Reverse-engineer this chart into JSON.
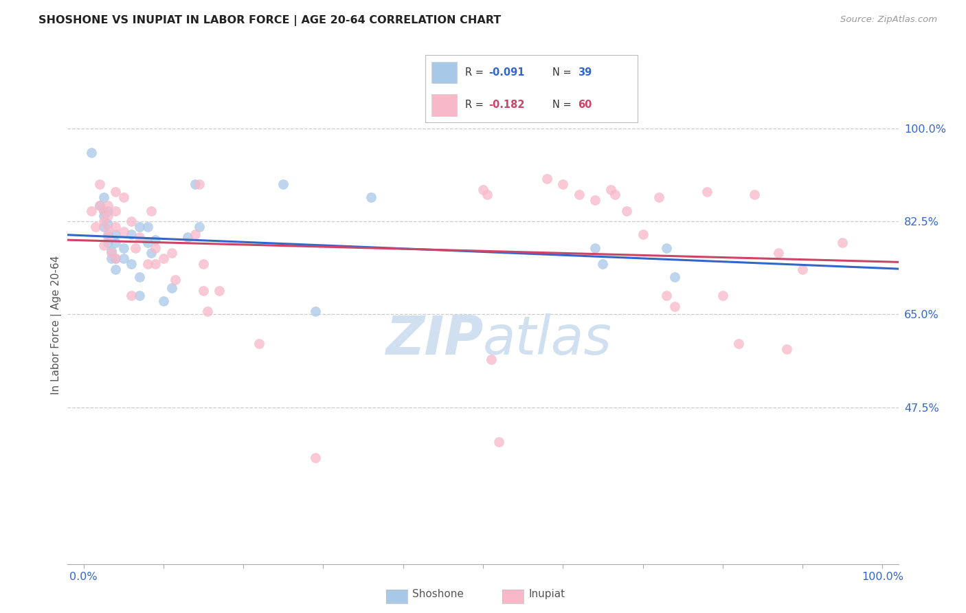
{
  "title": "SHOSHONE VS INUPIAT IN LABOR FORCE | AGE 20-64 CORRELATION CHART",
  "source": "Source: ZipAtlas.com",
  "ylabel": "In Labor Force | Age 20-64",
  "ytick_labels": [
    "100.0%",
    "82.5%",
    "65.0%",
    "47.5%"
  ],
  "ytick_values": [
    1.0,
    0.825,
    0.65,
    0.475
  ],
  "ymin": 0.18,
  "ymax": 1.08,
  "xmin": -0.02,
  "xmax": 1.02,
  "legend_r_shoshone": "-0.091",
  "legend_n_shoshone": "39",
  "legend_r_inupiat": "-0.182",
  "legend_n_inupiat": "60",
  "shoshone_color": "#a8c8e8",
  "inupiat_color": "#f8b8c8",
  "shoshone_line_color": "#3366cc",
  "inupiat_line_color": "#cc4466",
  "title_color": "#222222",
  "axis_label_color": "#3366cc",
  "watermark_color": "#d0e0f0",
  "shoshone_points": [
    [
      0.01,
      0.955
    ],
    [
      0.02,
      0.855
    ],
    [
      0.025,
      0.87
    ],
    [
      0.025,
      0.845
    ],
    [
      0.025,
      0.835
    ],
    [
      0.025,
      0.815
    ],
    [
      0.03,
      0.845
    ],
    [
      0.03,
      0.82
    ],
    [
      0.03,
      0.8
    ],
    [
      0.03,
      0.785
    ],
    [
      0.035,
      0.77
    ],
    [
      0.035,
      0.755
    ],
    [
      0.04,
      0.8
    ],
    [
      0.04,
      0.785
    ],
    [
      0.04,
      0.755
    ],
    [
      0.04,
      0.735
    ],
    [
      0.05,
      0.775
    ],
    [
      0.05,
      0.755
    ],
    [
      0.06,
      0.8
    ],
    [
      0.06,
      0.745
    ],
    [
      0.07,
      0.815
    ],
    [
      0.07,
      0.72
    ],
    [
      0.07,
      0.685
    ],
    [
      0.08,
      0.815
    ],
    [
      0.08,
      0.785
    ],
    [
      0.085,
      0.765
    ],
    [
      0.09,
      0.79
    ],
    [
      0.1,
      0.675
    ],
    [
      0.11,
      0.7
    ],
    [
      0.13,
      0.795
    ],
    [
      0.14,
      0.895
    ],
    [
      0.145,
      0.815
    ],
    [
      0.25,
      0.895
    ],
    [
      0.29,
      0.655
    ],
    [
      0.36,
      0.87
    ],
    [
      0.64,
      0.775
    ],
    [
      0.65,
      0.745
    ],
    [
      0.73,
      0.775
    ],
    [
      0.74,
      0.72
    ]
  ],
  "inupiat_points": [
    [
      0.01,
      0.845
    ],
    [
      0.015,
      0.815
    ],
    [
      0.02,
      0.895
    ],
    [
      0.02,
      0.855
    ],
    [
      0.025,
      0.845
    ],
    [
      0.025,
      0.825
    ],
    [
      0.025,
      0.78
    ],
    [
      0.03,
      0.855
    ],
    [
      0.03,
      0.835
    ],
    [
      0.03,
      0.81
    ],
    [
      0.03,
      0.795
    ],
    [
      0.035,
      0.765
    ],
    [
      0.04,
      0.88
    ],
    [
      0.04,
      0.845
    ],
    [
      0.04,
      0.815
    ],
    [
      0.04,
      0.755
    ],
    [
      0.05,
      0.87
    ],
    [
      0.05,
      0.805
    ],
    [
      0.06,
      0.825
    ],
    [
      0.06,
      0.685
    ],
    [
      0.065,
      0.775
    ],
    [
      0.07,
      0.795
    ],
    [
      0.08,
      0.745
    ],
    [
      0.085,
      0.845
    ],
    [
      0.09,
      0.775
    ],
    [
      0.09,
      0.745
    ],
    [
      0.1,
      0.755
    ],
    [
      0.11,
      0.765
    ],
    [
      0.115,
      0.715
    ],
    [
      0.14,
      0.8
    ],
    [
      0.145,
      0.895
    ],
    [
      0.15,
      0.745
    ],
    [
      0.15,
      0.695
    ],
    [
      0.155,
      0.655
    ],
    [
      0.17,
      0.695
    ],
    [
      0.22,
      0.595
    ],
    [
      0.29,
      0.38
    ],
    [
      0.5,
      0.885
    ],
    [
      0.505,
      0.875
    ],
    [
      0.51,
      0.565
    ],
    [
      0.52,
      0.41
    ],
    [
      0.58,
      0.905
    ],
    [
      0.6,
      0.895
    ],
    [
      0.62,
      0.875
    ],
    [
      0.64,
      0.865
    ],
    [
      0.66,
      0.885
    ],
    [
      0.665,
      0.875
    ],
    [
      0.68,
      0.845
    ],
    [
      0.7,
      0.8
    ],
    [
      0.72,
      0.87
    ],
    [
      0.73,
      0.685
    ],
    [
      0.74,
      0.665
    ],
    [
      0.78,
      0.88
    ],
    [
      0.8,
      0.685
    ],
    [
      0.82,
      0.595
    ],
    [
      0.84,
      0.875
    ],
    [
      0.87,
      0.765
    ],
    [
      0.88,
      0.585
    ],
    [
      0.9,
      0.735
    ],
    [
      0.95,
      0.785
    ]
  ]
}
